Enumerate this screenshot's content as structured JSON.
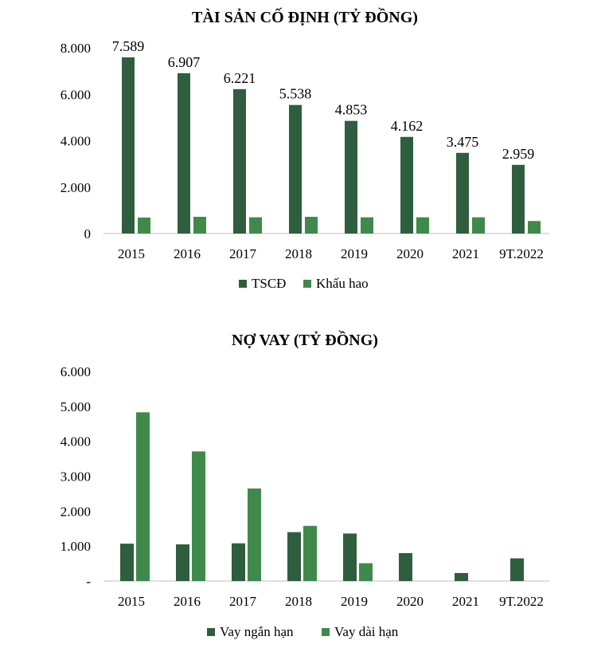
{
  "colors": {
    "series_dark": "#2f5e3e",
    "series_light": "#3f8a4a"
  },
  "chart_data": [
    {
      "type": "bar",
      "title": "TÀI SẢN CỐ ĐỊNH (TỶ ĐỒNG)",
      "categories": [
        "2015",
        "2016",
        "2017",
        "2018",
        "2019",
        "2020",
        "2021",
        "9T.2022"
      ],
      "series": [
        {
          "name": "TSCĐ",
          "values": [
            7589,
            6907,
            6221,
            5538,
            4853,
            4162,
            3475,
            2959
          ],
          "value_labels": [
            "7.589",
            "6.907",
            "6.221",
            "5.538",
            "4.853",
            "4.162",
            "3.475",
            "2.959"
          ]
        },
        {
          "name": "Khấu hao",
          "values": [
            690,
            720,
            700,
            720,
            700,
            700,
            700,
            540
          ]
        }
      ],
      "yticks": [
        "0",
        "2.000",
        "4.000",
        "6.000",
        "8.000"
      ],
      "ylim": [
        0,
        8000
      ],
      "legend_position": "bottom"
    },
    {
      "type": "bar",
      "title": "NỢ VAY (TỶ ĐỒNG)",
      "categories": [
        "2015",
        "2016",
        "2017",
        "2018",
        "2019",
        "2020",
        "2021",
        "9T.2022"
      ],
      "series": [
        {
          "name": "Vay ngắn hạn",
          "values": [
            1070,
            1050,
            1080,
            1400,
            1360,
            800,
            230,
            650
          ]
        },
        {
          "name": "Vay dài hạn",
          "values": [
            4830,
            3710,
            2650,
            1580,
            510,
            0,
            0,
            0
          ]
        }
      ],
      "yticks": [
        "-",
        "1.000",
        "2.000",
        "3.000",
        "4.000",
        "5.000",
        "6.000"
      ],
      "ylim": [
        0,
        6000
      ],
      "legend_position": "bottom"
    }
  ]
}
